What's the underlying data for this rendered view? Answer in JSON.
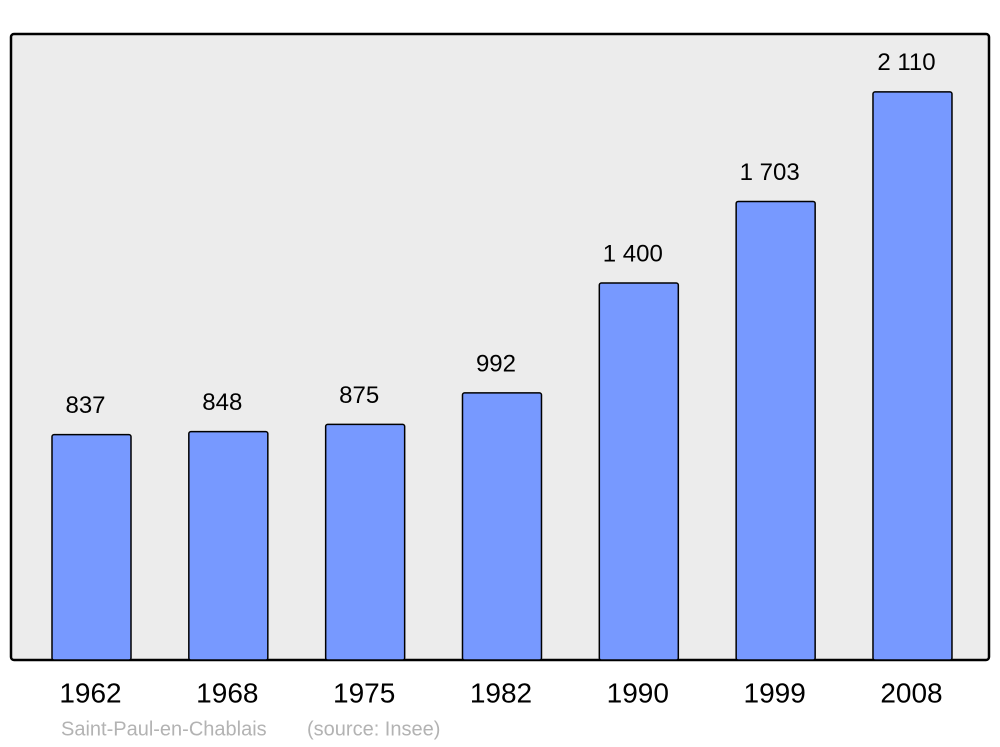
{
  "chart_data": {
    "type": "bar",
    "categories": [
      "1962",
      "1968",
      "1975",
      "1982",
      "1990",
      "1999",
      "2008"
    ],
    "values": [
      837,
      848,
      875,
      992,
      1400,
      1703,
      2110
    ],
    "value_labels": [
      "837",
      "848",
      "875",
      "992",
      "1 400",
      "1 703",
      "2 110"
    ],
    "color": "#7799ff",
    "ylim": [
      0,
      2325
    ],
    "place": "Saint-Paul-en-Chablais",
    "source": "(source: Insee)"
  }
}
